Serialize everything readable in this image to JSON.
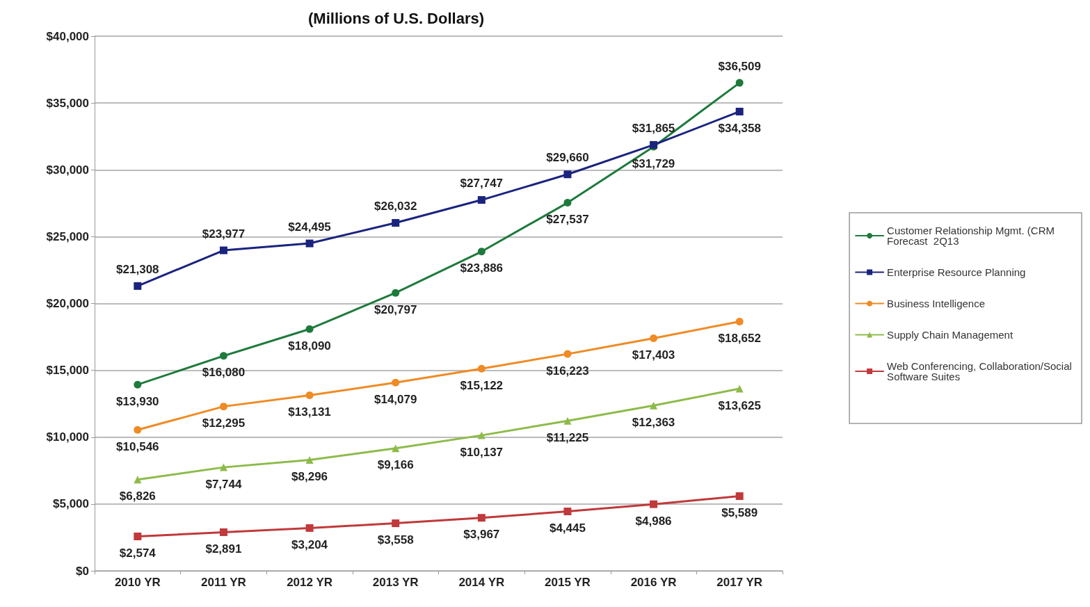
{
  "chart_data": {
    "type": "line",
    "subtitle": "(Millions of U.S. Dollars)",
    "categories": [
      "2010 YR",
      "2011 YR",
      "2012 YR",
      "2013 YR",
      "2014 YR",
      "2015 YR",
      "2016 YR",
      "2017 YR"
    ],
    "series": [
      {
        "name": "Customer Relationship Mgmt. (CRM Forecast  2Q13",
        "color": "#1e7a3c",
        "marker": "circle",
        "values": [
          13930,
          16080,
          18090,
          20797,
          23886,
          27537,
          31729,
          36509
        ],
        "value_labels": [
          "$13,930",
          "$16,080",
          "$18,090",
          "$20,797",
          "$23,886",
          "$27,537",
          "$31,729",
          "$36,509"
        ]
      },
      {
        "name": "Enterprise Resource Planning",
        "color": "#1a237e",
        "marker": "square",
        "values": [
          21308,
          23977,
          24495,
          26032,
          27747,
          29660,
          31865,
          34358
        ],
        "value_labels": [
          "$21,308",
          "$23,977",
          "$24,495",
          "$26,032",
          "$27,747",
          "$29,660",
          "$31,865",
          "$34,358"
        ]
      },
      {
        "name": "Business Intelligence",
        "color": "#f08a24",
        "marker": "circle",
        "values": [
          10546,
          12295,
          13131,
          14079,
          15122,
          16223,
          17403,
          18652
        ],
        "value_labels": [
          "$10,546",
          "$12,295",
          "$13,131",
          "$14,079",
          "$15,122",
          "$16,223",
          "$17,403",
          "$18,652"
        ]
      },
      {
        "name": "Supply Chain Management",
        "color": "#8dbb4a",
        "marker": "triangle",
        "values": [
          6826,
          7744,
          8296,
          9166,
          10137,
          11225,
          12363,
          13625
        ],
        "value_labels": [
          "$6,826",
          "$7,744",
          "$8,296",
          "$9,166",
          "$10,137",
          "$11,225",
          "$12,363",
          "$13,625"
        ]
      },
      {
        "name": "Web Conferencing, Collaboration/Social Software Suites",
        "color": "#c0393b",
        "marker": "square",
        "values": [
          2574,
          2891,
          3204,
          3558,
          3967,
          4445,
          4986,
          5589
        ],
        "value_labels": [
          "$2,574",
          "$2,891",
          "$3,204",
          "$3,558",
          "$3,967",
          "$4,445",
          "$4,986",
          "$5,589"
        ]
      }
    ],
    "ylim": [
      0,
      40000
    ],
    "yticks": [
      {
        "value": 0,
        "label": "$0"
      },
      {
        "value": 5000,
        "label": "$5,000"
      },
      {
        "value": 10000,
        "label": "$10,000"
      },
      {
        "value": 15000,
        "label": "$15,000"
      },
      {
        "value": 20000,
        "label": "$20,000"
      },
      {
        "value": 25000,
        "label": "$25,000"
      },
      {
        "value": 30000,
        "label": "$30,000"
      },
      {
        "value": 35000,
        "label": "$35,000"
      },
      {
        "value": 40000,
        "label": "$40,000"
      }
    ],
    "grid": "y",
    "legend": "right",
    "line_style": "solid"
  }
}
